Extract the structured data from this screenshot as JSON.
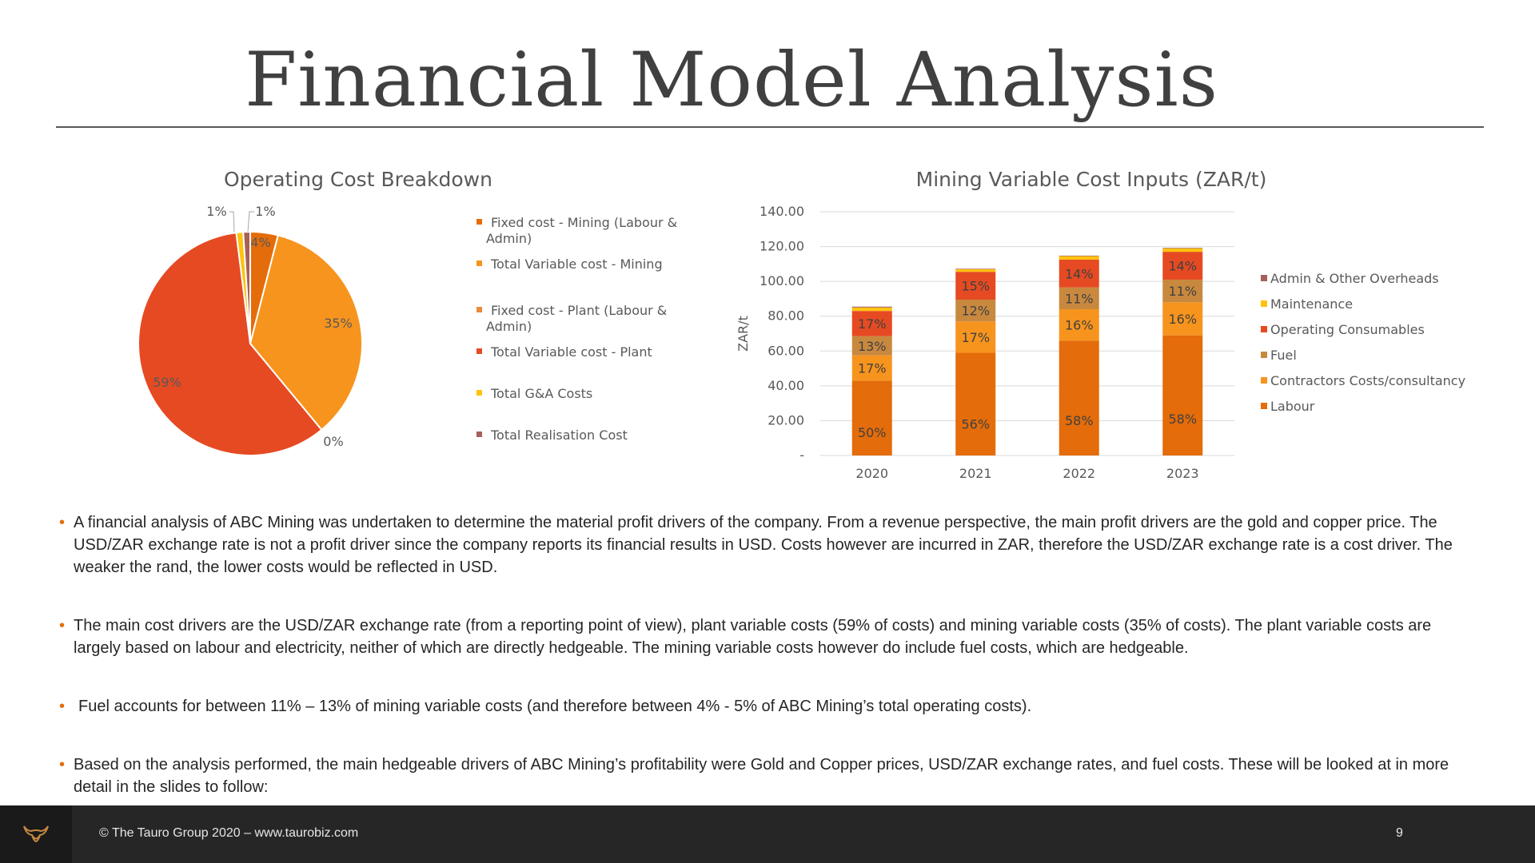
{
  "slide": {
    "title": "Financial Model Analysis",
    "footer_text": "© The Tauro Group 2020 – www.taurobiz.com",
    "page_number": "9",
    "accent_color": "#E46C0A"
  },
  "chart_data": [
    {
      "type": "pie",
      "title": "Operating Cost Breakdown",
      "slices": [
        {
          "label": "Fixed cost - Mining (Labour & Admin)",
          "value": 4,
          "display": "4%",
          "color": "#E46C0A"
        },
        {
          "label": "Total Variable cost - Mining",
          "value": 35,
          "display": "35%",
          "color": "#F7941D"
        },
        {
          "label": "Fixed cost - Plant (Labour & Admin)",
          "value": 0,
          "display": "0%",
          "color": "#E98B3C"
        },
        {
          "label": "Total Variable cost - Plant",
          "value": 59,
          "display": "59%",
          "color": "#E64A22"
        },
        {
          "label": "Total G&A Costs",
          "value": 1,
          "display": "1%",
          "color": "#FFC20E"
        },
        {
          "label": "Total Realisation Cost",
          "value": 1,
          "display": "1%",
          "color": "#A6605A"
        }
      ],
      "legend": [
        [
          "Fixed cost - Mining (Labour &",
          "Admin)"
        ],
        [
          "Total Variable cost - Mining"
        ],
        [
          "Fixed cost - Plant (Labour &",
          "Admin)"
        ],
        [
          "Total Variable cost - Plant"
        ],
        [
          "Total G&A Costs"
        ],
        [
          "Total Realisation Cost"
        ]
      ],
      "legend_position": "right"
    },
    {
      "type": "bar",
      "stacked": true,
      "title": "Mining Variable Cost Inputs (ZAR/t)",
      "ylabel": "ZAR/t",
      "xlabel": "",
      "categories": [
        "2020",
        "2021",
        "2022",
        "2023"
      ],
      "ylim": [
        0,
        140
      ],
      "yticks": [
        "-",
        "20.00",
        "40.00",
        "60.00",
        "80.00",
        "100.00",
        "120.00",
        "140.00"
      ],
      "grid": true,
      "legend_position": "right",
      "series": [
        {
          "name": "Labour",
          "color": "#E46C0A",
          "values": [
            43,
            59,
            66,
            69
          ],
          "labels": [
            "50%",
            "56%",
            "58%",
            "58%"
          ]
        },
        {
          "name": "Contractors Costs/consultancy",
          "color": "#F7941D",
          "values": [
            14.5,
            18,
            18,
            19
          ],
          "labels": [
            "17%",
            "17%",
            "16%",
            "16%"
          ]
        },
        {
          "name": "Fuel",
          "color": "#C8893F",
          "values": [
            11,
            12.5,
            12.5,
            13
          ],
          "labels": [
            "13%",
            "12%",
            "11%",
            "11%"
          ]
        },
        {
          "name": "Operating Consumables",
          "color": "#E64A22",
          "values": [
            14.5,
            16,
            16,
            16
          ],
          "labels": [
            "17%",
            "15%",
            "14%",
            "14%"
          ]
        },
        {
          "name": "Maintenance",
          "color": "#FFC20E",
          "values": [
            2,
            1.5,
            2,
            2
          ],
          "labels": [
            "",
            "",
            "",
            ""
          ]
        },
        {
          "name": "Admin & Other Overheads",
          "color": "#A6605A",
          "values": [
            0.5,
            0.3,
            0.3,
            0.3
          ],
          "labels": [
            "",
            "",
            "",
            ""
          ]
        }
      ]
    }
  ],
  "bullets": [
    "A financial analysis of ABC Mining was undertaken to determine the material profit drivers of the company. From a revenue perspective, the main profit drivers are the gold and copper price. The USD/ZAR exchange rate is not a profit driver since the company reports its financial results in USD. Costs however are incurred in ZAR, therefore the USD/ZAR exchange rate is a cost driver. The weaker the rand, the lower costs would be reflected in USD.",
    "The main cost drivers are the USD/ZAR exchange rate (from a reporting point of view), plant variable costs (59% of costs) and mining variable costs (35% of costs). The plant variable costs are largely based on labour and electricity, neither of which are directly hedgeable. The mining variable costs however do include fuel costs, which are hedgeable.",
    "Fuel accounts for between 11% – 13% of mining variable costs (and therefore between 4% - 5% of ABC Mining’s total operating costs).",
    "Based on the analysis performed, the main hedgeable drivers of ABC Mining’s profitability were Gold and Copper prices, USD/ZAR exchange rates, and fuel costs. These will be looked at in more detail in the slides to follow:"
  ]
}
